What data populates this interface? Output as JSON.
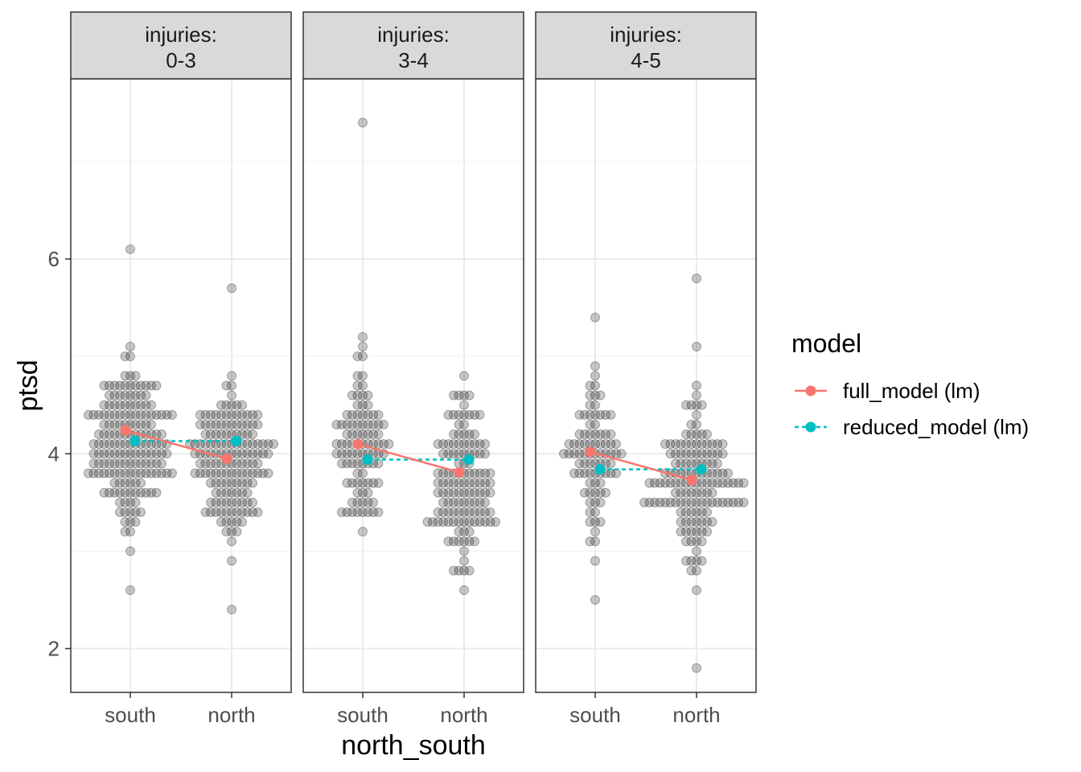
{
  "chart_data": {
    "type": "scatter",
    "facet_var": "injuries",
    "panels": [
      {
        "label_line1": "injuries:",
        "label_line2": "0-3",
        "south": {
          "min": 2.6,
          "max": 6.1,
          "center": 4.1,
          "n": 170
        },
        "north": {
          "min": 2.4,
          "max": 5.7,
          "center": 3.9,
          "n": 150
        },
        "full_model": {
          "south": 4.24,
          "north": 3.95
        },
        "reduced_model": {
          "south": 4.13,
          "north": 4.13
        }
      },
      {
        "label_line1": "injuries:",
        "label_line2": "3-4",
        "south": {
          "min": 3.2,
          "max": 7.4,
          "center": 4.1,
          "n": 95
        },
        "north": {
          "min": 2.6,
          "max": 4.8,
          "center": 3.7,
          "n": 125
        },
        "full_model": {
          "south": 4.1,
          "north": 3.81
        },
        "reduced_model": {
          "south": 3.94,
          "north": 3.94
        }
      },
      {
        "label_line1": "injuries:",
        "label_line2": "4-5",
        "south": {
          "min": 2.5,
          "max": 5.4,
          "center": 4.0,
          "n": 85
        },
        "north": {
          "min": 1.8,
          "max": 5.8,
          "center": 3.7,
          "n": 140
        },
        "full_model": {
          "south": 4.02,
          "north": 3.73
        },
        "reduced_model": {
          "south": 3.84,
          "north": 3.84
        }
      }
    ],
    "categories": [
      "south",
      "north"
    ],
    "x_ticks": [
      "south",
      "north"
    ],
    "y_ticks": [
      "2",
      "4",
      "6"
    ],
    "y_tick_values": [
      2,
      4,
      6
    ],
    "ylim": [
      1.55,
      7.85
    ],
    "xlabel": "north_south",
    "ylabel": "ptsd",
    "legend": {
      "title": "model",
      "entries": [
        {
          "label": "full_model (lm)",
          "color": "#F8766D",
          "linetype": "solid"
        },
        {
          "label": "reduced_model (lm)",
          "color": "#00BFC4",
          "linetype": "dashed"
        }
      ]
    },
    "colors": {
      "full_model": "#F8766D",
      "reduced_model": "#00BFC4",
      "points": "#000000",
      "strip_bg": "#D9D9D9",
      "grid": "#EBEBEB"
    }
  }
}
